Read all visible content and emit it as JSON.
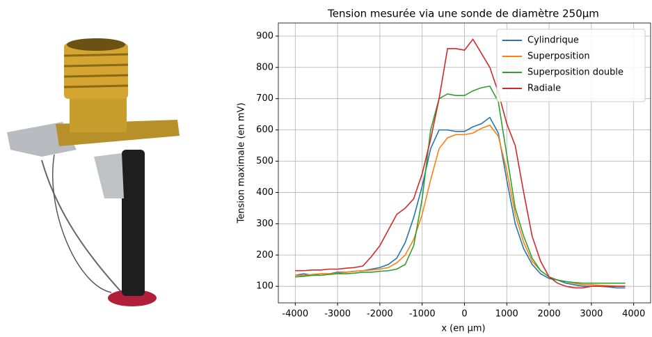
{
  "chart_data": {
    "type": "line",
    "title": "Tension mesurée via une sonde de diamètre 250µm",
    "x_label": "x (en µm)",
    "y_label": "Tension maximale (en mV)",
    "x": [
      -4000,
      -3800,
      -3600,
      -3400,
      -3200,
      -3000,
      -2800,
      -2600,
      -2400,
      -2200,
      -2000,
      -1800,
      -1600,
      -1400,
      -1200,
      -1000,
      -800,
      -600,
      -400,
      -200,
      0,
      200,
      400,
      600,
      800,
      1000,
      1200,
      1400,
      1600,
      1800,
      2000,
      2200,
      2400,
      2600,
      2800,
      3000,
      3200,
      3400,
      3600,
      3800
    ],
    "series": [
      {
        "name": "Cylindrique",
        "color": "#1f77b4",
        "values": [
          135,
          140,
          135,
          140,
          140,
          145,
          145,
          148,
          150,
          155,
          160,
          170,
          190,
          240,
          320,
          420,
          540,
          600,
          600,
          595,
          595,
          610,
          620,
          640,
          590,
          440,
          300,
          220,
          170,
          140,
          125,
          120,
          110,
          105,
          100,
          100,
          100,
          98,
          95,
          95
        ]
      },
      {
        "name": "Superposition",
        "color": "#ff7f0e",
        "values": [
          135,
          135,
          138,
          140,
          140,
          142,
          145,
          148,
          150,
          152,
          155,
          160,
          175,
          200,
          250,
          330,
          440,
          540,
          575,
          585,
          585,
          590,
          605,
          615,
          580,
          470,
          330,
          240,
          180,
          150,
          130,
          120,
          115,
          110,
          105,
          105,
          103,
          102,
          100,
          100
        ]
      },
      {
        "name": "Superposition double",
        "color": "#2ca02c",
        "values": [
          130,
          132,
          135,
          135,
          138,
          140,
          140,
          142,
          145,
          145,
          148,
          150,
          155,
          170,
          230,
          380,
          600,
          700,
          715,
          710,
          710,
          725,
          735,
          740,
          690,
          520,
          350,
          260,
          190,
          150,
          130,
          120,
          115,
          112,
          110,
          110,
          110,
          110,
          110,
          110
        ]
      },
      {
        "name": "Radiale",
        "color": "#d62728",
        "values": [
          150,
          150,
          152,
          152,
          155,
          155,
          158,
          160,
          165,
          195,
          230,
          280,
          330,
          350,
          380,
          460,
          570,
          700,
          860,
          860,
          855,
          890,
          845,
          800,
          720,
          620,
          550,
          400,
          260,
          180,
          130,
          110,
          100,
          95,
          95,
          100,
          100,
          100,
          100,
          100
        ]
      }
    ],
    "xlim": [
      -4400,
      4400
    ],
    "ylim": [
      47,
      942
    ],
    "xticks": [
      -4000,
      -3000,
      -2000,
      -1000,
      0,
      1000,
      2000,
      3000,
      4000
    ],
    "yticks": [
      100,
      200,
      300,
      400,
      500,
      600,
      700,
      800,
      900
    ],
    "grid": true,
    "legend": "upper-right"
  }
}
